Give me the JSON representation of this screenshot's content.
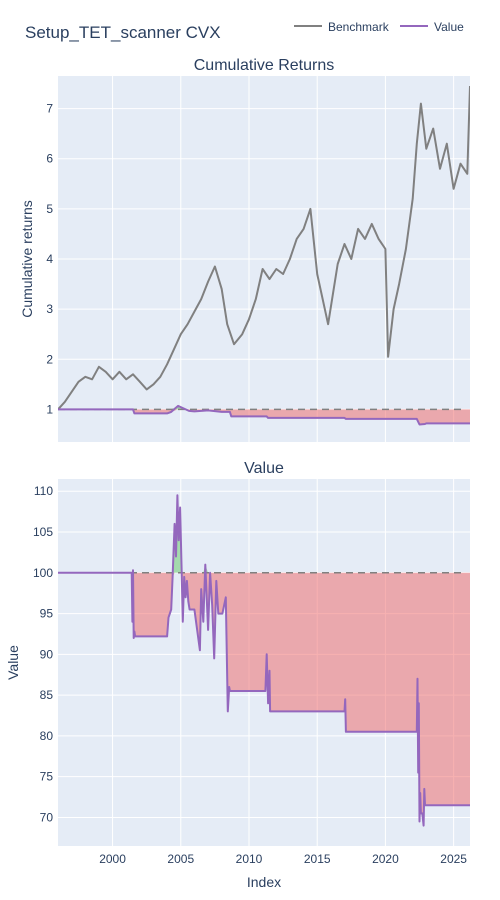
{
  "title": "Setup_TET_scanner CVX",
  "legend": {
    "placement": "top-right",
    "items": [
      {
        "name": "Benchmark",
        "color": "#808080"
      },
      {
        "name": "Value",
        "color": "#9467bd"
      }
    ]
  },
  "chart_data": [
    {
      "type": "line",
      "title": "Cumulative Returns",
      "ylabel": "Cumulative returns",
      "xlim": [
        1996.0,
        2026.2
      ],
      "ylim": [
        0.35,
        7.65
      ],
      "grid": true,
      "y_ticks": [
        1,
        2,
        3,
        4,
        5,
        6,
        7
      ],
      "baseline": 1,
      "series": [
        {
          "name": "Benchmark",
          "color": "#808080",
          "x": [
            1996.0,
            1996.5,
            1997.0,
            1997.5,
            1998.0,
            1998.5,
            1999.0,
            1999.5,
            2000.0,
            2000.5,
            2001.0,
            2001.5,
            2002.0,
            2002.5,
            2003.0,
            2003.5,
            2004.0,
            2004.5,
            2005.0,
            2005.5,
            2006.0,
            2006.5,
            2007.0,
            2007.5,
            2008.0,
            2008.4,
            2008.9,
            2009.5,
            2010.0,
            2010.5,
            2011.0,
            2011.5,
            2012.0,
            2012.5,
            2013.0,
            2013.5,
            2014.0,
            2014.5,
            2015.0,
            2015.8,
            2016.5,
            2017.0,
            2017.5,
            2018.0,
            2018.5,
            2019.0,
            2019.5,
            2020.0,
            2020.2,
            2020.6,
            2021.0,
            2021.5,
            2022.0,
            2022.3,
            2022.6,
            2023.0,
            2023.5,
            2024.0,
            2024.5,
            2025.0,
            2025.5,
            2026.0,
            2026.2
          ],
          "values": [
            1.0,
            1.15,
            1.35,
            1.55,
            1.65,
            1.6,
            1.85,
            1.75,
            1.6,
            1.75,
            1.6,
            1.7,
            1.55,
            1.4,
            1.5,
            1.65,
            1.9,
            2.2,
            2.5,
            2.7,
            2.95,
            3.2,
            3.55,
            3.85,
            3.4,
            2.7,
            2.3,
            2.5,
            2.8,
            3.2,
            3.8,
            3.6,
            3.8,
            3.7,
            4.0,
            4.4,
            4.6,
            5.0,
            3.7,
            2.7,
            3.9,
            4.3,
            4.0,
            4.6,
            4.4,
            4.7,
            4.4,
            4.2,
            2.05,
            3.0,
            3.5,
            4.2,
            5.2,
            6.3,
            7.1,
            6.2,
            6.6,
            5.8,
            6.3,
            5.4,
            5.9,
            5.7,
            7.45
          ]
        },
        {
          "name": "Value",
          "color": "#9467bd",
          "x": [
            1996.0,
            2001.5,
            2001.6,
            2004.0,
            2004.3,
            2004.8,
            2005.2,
            2005.6,
            2006.0,
            2007.0,
            2008.0,
            2008.6,
            2008.7,
            2011.3,
            2011.4,
            2017.0,
            2017.1,
            2022.3,
            2022.5,
            2022.9,
            2023.0,
            2026.2
          ],
          "values": [
            1.0,
            1.0,
            0.92,
            0.92,
            0.95,
            1.07,
            1.02,
            0.97,
            0.96,
            0.98,
            0.95,
            0.95,
            0.86,
            0.86,
            0.83,
            0.83,
            0.81,
            0.81,
            0.7,
            0.71,
            0.72,
            0.72
          ]
        }
      ]
    },
    {
      "type": "line",
      "title": "Value",
      "ylabel": "Value",
      "xlabel": "Index",
      "xlim": [
        1996.0,
        2026.2
      ],
      "ylim": [
        66.5,
        111.5
      ],
      "grid": true,
      "x_ticks": [
        2000,
        2005,
        2010,
        2015,
        2020,
        2025
      ],
      "y_ticks": [
        70,
        75,
        80,
        85,
        90,
        95,
        100,
        105,
        110
      ],
      "baseline": 100,
      "series": [
        {
          "name": "Value",
          "color": "#9467bd",
          "x": [
            1996.0,
            2001.4,
            2001.45,
            2001.5,
            2001.55,
            2001.6,
            2001.65,
            2004.0,
            2004.1,
            2004.3,
            2004.4,
            2004.55,
            2004.65,
            2004.75,
            2004.85,
            2004.95,
            2005.05,
            2005.15,
            2005.25,
            2005.35,
            2005.45,
            2005.55,
            2005.65,
            2005.75,
            2006.0,
            2006.4,
            2006.5,
            2006.65,
            2006.8,
            2007.0,
            2007.15,
            2007.3,
            2007.45,
            2007.6,
            2007.75,
            2007.9,
            2008.05,
            2008.3,
            2008.45,
            2008.55,
            2008.6,
            2008.65,
            2008.7,
            2011.2,
            2011.3,
            2011.4,
            2011.5,
            2011.55,
            2011.6,
            2017.0,
            2017.05,
            2017.1,
            2022.3,
            2022.35,
            2022.4,
            2022.45,
            2022.5,
            2022.55,
            2022.6,
            2022.7,
            2022.8,
            2022.85,
            2022.9,
            2023.0,
            2026.2
          ],
          "values": [
            100.0,
            100.0,
            94.0,
            100.3,
            92.0,
            92.8,
            92.2,
            92.2,
            94.5,
            95.5,
            99.5,
            106.0,
            102.0,
            109.5,
            104.0,
            108.0,
            101.0,
            94.0,
            99.5,
            97.0,
            99.0,
            96.5,
            95.5,
            95.5,
            95.5,
            90.5,
            98.0,
            94.0,
            101.0,
            93.0,
            100.0,
            96.0,
            89.5,
            99.0,
            95.0,
            95.0,
            95.0,
            97.0,
            83.0,
            86.0,
            85.5,
            85.5,
            85.5,
            85.5,
            90.0,
            84.0,
            88.0,
            83.0,
            83.0,
            83.0,
            84.5,
            80.5,
            80.5,
            87.0,
            75.5,
            84.0,
            69.5,
            73.0,
            70.5,
            70.5,
            69.0,
            73.5,
            71.5,
            71.5,
            71.5
          ]
        }
      ]
    }
  ]
}
